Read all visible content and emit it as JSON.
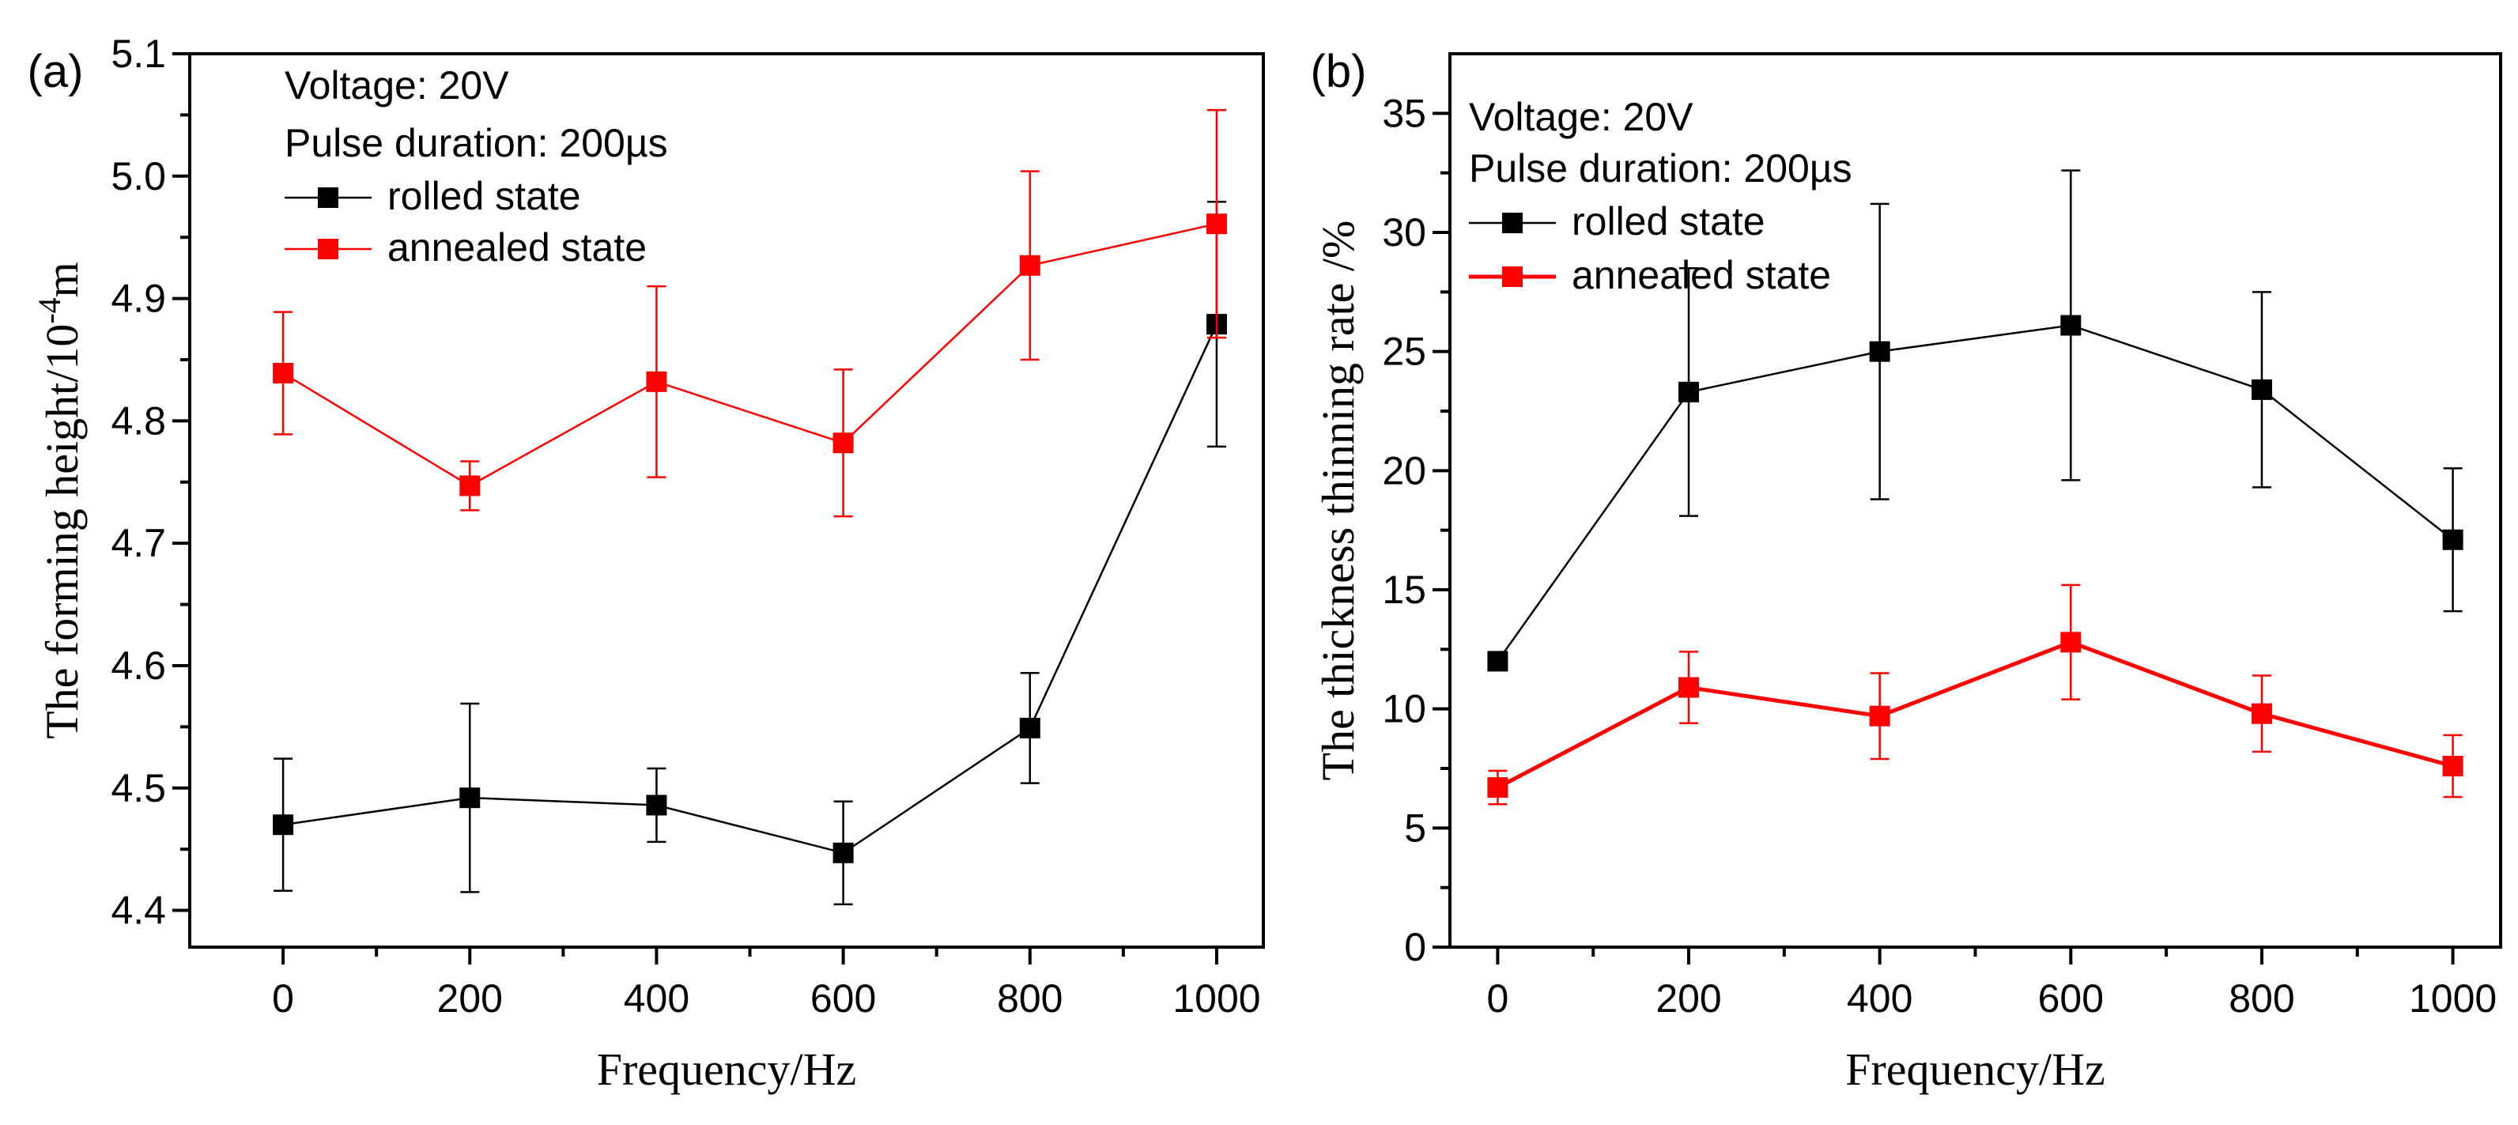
{
  "chart_data": [
    {
      "panel_label": "(a)",
      "type": "line",
      "xlabel": "Frequency/Hz",
      "ylabel": "The forming height/10",
      "ylabel_exponent": "-4",
      "ylabel_unit": "m",
      "x": [
        0,
        200,
        400,
        600,
        800,
        1000
      ],
      "xlim": [
        -100,
        1050
      ],
      "ylim": [
        4.37,
        5.1
      ],
      "xticks": [
        "0",
        "200",
        "400",
        "600",
        "800",
        "1000"
      ],
      "yticks": [
        "4.4",
        "4.5",
        "4.6",
        "4.7",
        "4.8",
        "4.9",
        "5.0",
        "5.1"
      ],
      "annotations": [
        "Voltage: 20V",
        "Pulse duration: 200µs"
      ],
      "legend_position": "top-left",
      "series": [
        {
          "name": "rolled state",
          "color": "#000000",
          "marker": "square",
          "values": [
            4.47,
            4.492,
            4.486,
            4.447,
            4.549,
            4.879
          ],
          "errors": [
            0.054,
            0.077,
            0.03,
            0.042,
            0.045,
            0.1
          ]
        },
        {
          "name": "annealed state",
          "color": "#ff0000",
          "marker": "square",
          "values": [
            4.839,
            4.747,
            4.832,
            4.782,
            4.927,
            4.961
          ],
          "errors": [
            0.05,
            0.02,
            0.078,
            0.06,
            0.077,
            0.093
          ]
        }
      ]
    },
    {
      "panel_label": "(b)",
      "type": "line",
      "xlabel": "Frequency/Hz",
      "ylabel": "The thickness thinning rate /%",
      "x": [
        0,
        200,
        400,
        600,
        800,
        1000
      ],
      "xlim": [
        -50,
        1050
      ],
      "ylim": [
        0,
        37.5
      ],
      "xticks": [
        "0",
        "200",
        "400",
        "600",
        "800",
        "1000"
      ],
      "yticks": [
        "0",
        "5",
        "10",
        "15",
        "20",
        "25",
        "30",
        "35"
      ],
      "annotations": [
        "Voltage: 20V",
        "Pulse duration: 200µs"
      ],
      "legend_position": "top-left",
      "series": [
        {
          "name": "rolled state",
          "color": "#000000",
          "marker": "square",
          "values": [
            12.0,
            23.3,
            25.0,
            26.1,
            23.4,
            17.1
          ],
          "errors": [
            0.2,
            5.2,
            6.2,
            6.5,
            4.1,
            3.0
          ]
        },
        {
          "name": "annealed state",
          "color": "#ff0000",
          "marker": "square",
          "values": [
            6.7,
            10.9,
            9.7,
            12.8,
            9.8,
            7.6
          ],
          "errors": [
            0.7,
            1.5,
            1.8,
            2.4,
            1.6,
            1.3
          ]
        }
      ]
    }
  ]
}
